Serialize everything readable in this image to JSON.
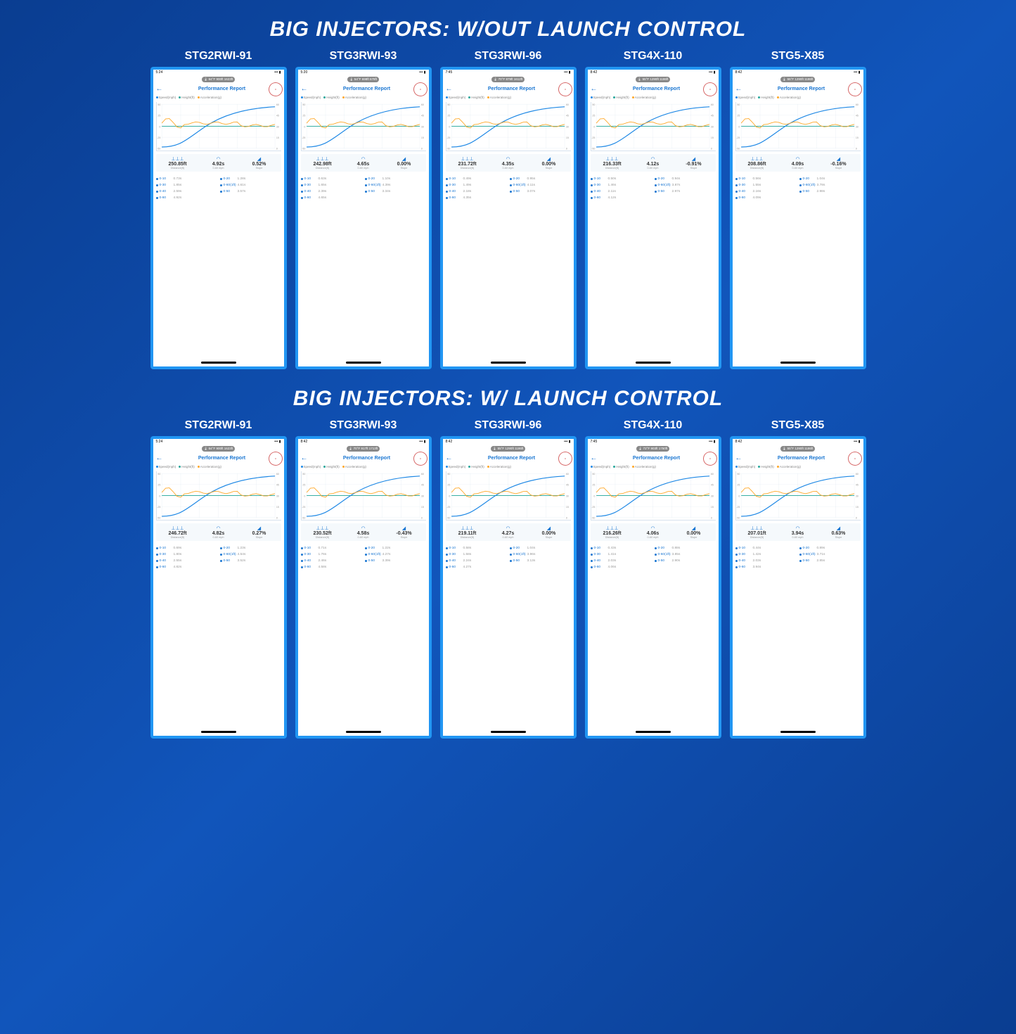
{
  "sections": [
    {
      "title": "BIG INJECTORS: W/OUT LAUNCH CONTROL"
    },
    {
      "title": "BIG INJECTORS: W/ LAUNCH CONTROL"
    }
  ],
  "colors": {
    "bg": "#0d47a1",
    "accent": "#2196f3",
    "speed": "#1e88e5",
    "height": "#26a69a",
    "accel": "#ffa726",
    "text_primary": "#333333",
    "text_muted": "#999999"
  },
  "header_title": "Performance Report",
  "legend_labels": {
    "speed": "Speed(mph)",
    "height": "Height(ft)",
    "accel": "Acceleration(g)"
  },
  "metric_labels": {
    "distance": "Distance(ft)",
    "time": "0-60 mph",
    "slope": "Slope"
  },
  "chart_axes": {
    "left": [
      "50",
      "25",
      "0",
      "-25",
      "-50"
    ],
    "right": [
      "60",
      "45",
      "30",
      "15",
      "0"
    ],
    "g": [
      "1.5",
      "1",
      "0.5",
      "0",
      "-0.5",
      "-1"
    ]
  },
  "cards": [
    [
      {
        "label": "STG2RWI-91",
        "time": "5:24",
        "weather": "64°F  900ft  1623ft",
        "distance": "250.85ft",
        "zsixty": "4.92s",
        "slope": "0.52%",
        "splits": [
          [
            "0-10",
            "0.73s"
          ],
          [
            "0-20",
            "1.28s"
          ],
          [
            "0-30",
            "1.85s"
          ],
          [
            "0-60(1ft)",
            "4.61s"
          ],
          [
            "0-40",
            "2.59s"
          ],
          [
            "0-50",
            "3.57s"
          ],
          [
            "0-60",
            "4.92s"
          ],
          [
            "",
            ""
          ]
        ]
      },
      {
        "label": "STG3RWI-93",
        "time": "5:20",
        "weather": "54°F  698ft  678ft",
        "distance": "242.98ft",
        "zsixty": "4.65s",
        "slope": "0.00%",
        "splits": [
          [
            "0-10",
            "0.63s"
          ],
          [
            "0-20",
            "1.10s"
          ],
          [
            "0-30",
            "1.65s"
          ],
          [
            "0-60(1ft)",
            "4.39s"
          ],
          [
            "0-40",
            "2.39s"
          ],
          [
            "0-50",
            "3.34s"
          ],
          [
            "0-60",
            "4.65s"
          ],
          [
            "",
            ""
          ]
        ]
      },
      {
        "label": "STG3RWI-96",
        "time": "7:45",
        "weather": "70°F  879ft  1612ft",
        "distance": "231.72ft",
        "zsixty": "4.35s",
        "slope": "0.00%",
        "splits": [
          [
            "0-10",
            "0.49s"
          ],
          [
            "0-20",
            "0.95s"
          ],
          [
            "0-30",
            "1.49s"
          ],
          [
            "0-60(1ft)",
            "4.11s"
          ],
          [
            "0-40",
            "2.18s"
          ],
          [
            "0-50",
            "3.07s"
          ],
          [
            "0-60",
            "4.35s"
          ],
          [
            "",
            ""
          ]
        ]
      },
      {
        "label": "STG4X-110",
        "time": "8:42",
        "weather": "55°F  1290ft  1186ft",
        "distance": "216.33ft",
        "zsixty": "4.12s",
        "slope": "-0.91%",
        "splits": [
          [
            "0-10",
            "0.50s"
          ],
          [
            "0-20",
            "0.94s"
          ],
          [
            "0-30",
            "1.46s"
          ],
          [
            "0-60(1ft)",
            "3.87s"
          ],
          [
            "0-40",
            "2.11s"
          ],
          [
            "0-50",
            "2.97s"
          ],
          [
            "0-60",
            "4.12s"
          ],
          [
            "",
            ""
          ]
        ]
      },
      {
        "label": "STG5-X85",
        "time": "8:42",
        "weather": "55°F  1290ft  1186ft",
        "distance": "208.86ft",
        "zsixty": "4.09s",
        "slope": "-0.16%",
        "splits": [
          [
            "0-10",
            "0.56s"
          ],
          [
            "0-20",
            "1.04s"
          ],
          [
            "0-30",
            "1.55s"
          ],
          [
            "0-60(1ft)",
            "3.78s"
          ],
          [
            "0-40",
            "2.16s"
          ],
          [
            "0-50",
            "2.98s"
          ],
          [
            "0-60",
            "4.09s"
          ],
          [
            "",
            ""
          ]
        ]
      }
    ],
    [
      {
        "label": "STG2RWI-91",
        "time": "5:24",
        "weather": "64°F  900ft  1623ft",
        "distance": "246.72ft",
        "zsixty": "4.82s",
        "slope": "0.27%",
        "splits": [
          [
            "0-10",
            "0.69s"
          ],
          [
            "0-20",
            "1.23s"
          ],
          [
            "0-30",
            "1.80s"
          ],
          [
            "0-60(1ft)",
            "4.54s"
          ],
          [
            "0-40",
            "2.55s"
          ],
          [
            "0-50",
            "3.52s"
          ],
          [
            "0-60",
            "4.82s"
          ],
          [
            "",
            ""
          ]
        ]
      },
      {
        "label": "STG3RWI-93",
        "time": "8:42",
        "weather": "70°F  917ft  1713ft",
        "distance": "230.52ft",
        "zsixty": "4.58s",
        "slope": "-0.43%",
        "splits": [
          [
            "0-10",
            "0.71s"
          ],
          [
            "0-20",
            "1.22s"
          ],
          [
            "0-30",
            "1.76s"
          ],
          [
            "0-60(1ft)",
            "4.27s"
          ],
          [
            "0-40",
            "2.46s"
          ],
          [
            "0-50",
            "3.39s"
          ],
          [
            "0-60",
            "4.58s"
          ],
          [
            "",
            ""
          ]
        ]
      },
      {
        "label": "STG3RWI-96",
        "time": "8:42",
        "weather": "55°F  1290ft  1186ft",
        "distance": "219.11ft",
        "zsixty": "4.27s",
        "slope": "0.00%",
        "splits": [
          [
            "0-10",
            "0.58s"
          ],
          [
            "0-20",
            "1.04s"
          ],
          [
            "0-30",
            "1.58s"
          ],
          [
            "0-60(1ft)",
            "3.96s"
          ],
          [
            "0-40",
            "2.24s"
          ],
          [
            "0-50",
            "3.13s"
          ],
          [
            "0-60",
            "4.27s"
          ],
          [
            "",
            ""
          ]
        ]
      },
      {
        "label": "STG4X-110",
        "time": "7:45",
        "weather": "72°F  903ft  1750ft",
        "distance": "216.26ft",
        "zsixty": "4.06s",
        "slope": "0.00%",
        "splits": [
          [
            "0-10",
            "0.43s"
          ],
          [
            "0-20",
            "0.88s"
          ],
          [
            "0-30",
            "1.41s"
          ],
          [
            "0-60(1ft)",
            "3.85s"
          ],
          [
            "0-40",
            "2.03s"
          ],
          [
            "0-50",
            "2.90s"
          ],
          [
            "0-60",
            "4.06s"
          ],
          [
            "",
            ""
          ]
        ]
      },
      {
        "label": "STG5-X85",
        "time": "8:42",
        "weather": "55°F  1290ft  1186ft",
        "distance": "207.01ft",
        "zsixty": "3.94s",
        "slope": "0.63%",
        "splits": [
          [
            "0-10",
            "0.44s"
          ],
          [
            "0-20",
            "0.89s"
          ],
          [
            "0-30",
            "1.42s"
          ],
          [
            "0-60(1ft)",
            "3.71s"
          ],
          [
            "0-40",
            "2.03s"
          ],
          [
            "0-50",
            "2.85s"
          ],
          [
            "0-60",
            "3.94s"
          ],
          [
            "",
            ""
          ]
        ]
      }
    ]
  ]
}
